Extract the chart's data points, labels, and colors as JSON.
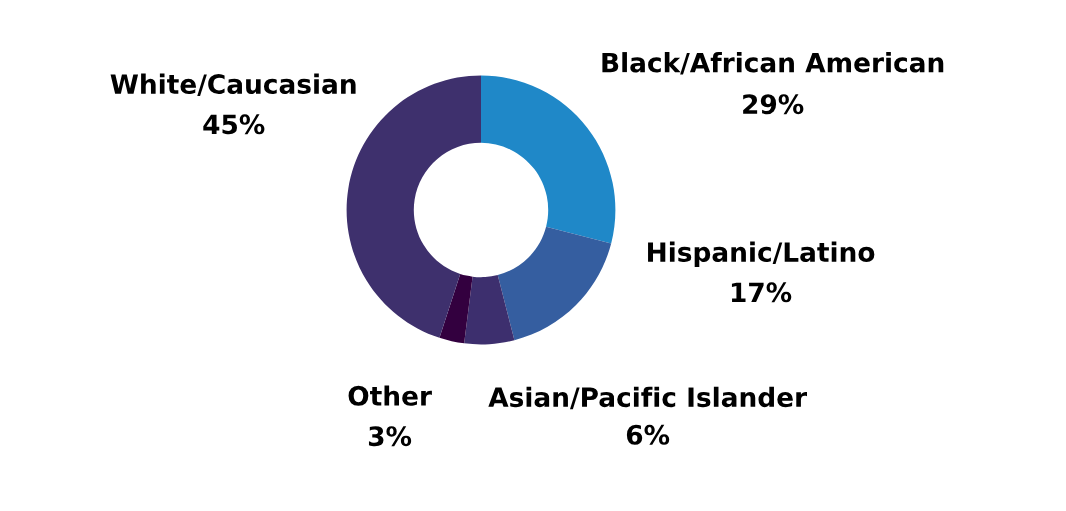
{
  "chart_data": {
    "type": "donut",
    "categories": [
      "Black/African American",
      "Hispanic/Latino",
      "Asian/Pacific Islander",
      "Other",
      "White/Caucasian"
    ],
    "values": [
      29,
      17,
      6,
      3,
      45
    ],
    "value_labels": [
      "29%",
      "17%",
      "6%",
      "3%",
      "45%"
    ],
    "colors": [
      "#1f88c8",
      "#355ea0",
      "#3d2f6e",
      "#33003f",
      "#3e306d"
    ],
    "legend": false
  }
}
